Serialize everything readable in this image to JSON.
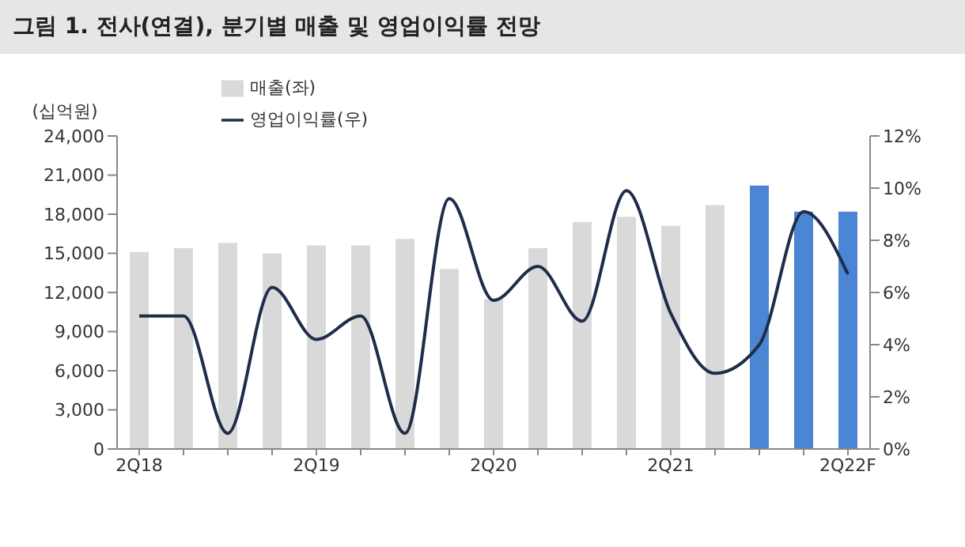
{
  "chart_data": {
    "type": "bar",
    "title": "그림 1. 전사(연결), 분기별 매출 및 영업이익률 전망",
    "ylabel": "(십억원)",
    "categories": [
      "2Q18",
      null,
      null,
      null,
      "2Q19",
      null,
      null,
      null,
      "2Q20",
      null,
      null,
      null,
      "2Q21",
      null,
      null,
      null,
      "2Q22F"
    ],
    "series": [
      {
        "name": "매출(좌)",
        "colors": [
          "#d9d9d9",
          "#d9d9d9",
          "#d9d9d9",
          "#d9d9d9",
          "#d9d9d9",
          "#d9d9d9",
          "#d9d9d9",
          "#d9d9d9",
          "#d9d9d9",
          "#d9d9d9",
          "#d9d9d9",
          "#d9d9d9",
          "#d9d9d9",
          "#d9d9d9",
          "#4a86d4",
          "#4a86d4",
          "#4a86d4"
        ],
        "values": [
          15100,
          15400,
          15800,
          15000,
          15600,
          15600,
          16100,
          13800,
          11500,
          15400,
          17400,
          17800,
          17100,
          18700,
          20200,
          18200,
          18200
        ]
      },
      {
        "name": "영업이익률(우)",
        "type": "line",
        "axis": "y2",
        "color": "#1f2d4a",
        "values": [
          5.1,
          5.1,
          0.6,
          6.2,
          4.2,
          5.1,
          0.6,
          9.6,
          5.7,
          7.0,
          4.9,
          9.9,
          5.2,
          2.9,
          4.0,
          9.1,
          6.7
        ]
      }
    ],
    "ylim": [
      0,
      24000
    ],
    "yticks": [
      {
        "value": 0,
        "label": "0"
      },
      {
        "value": 3000,
        "label": "3,000"
      },
      {
        "value": 6000,
        "label": "6,000"
      },
      {
        "value": 9000,
        "label": "9,000"
      },
      {
        "value": 12000,
        "label": "12,000"
      },
      {
        "value": 15000,
        "label": "15,000"
      },
      {
        "value": 18000,
        "label": "18,000"
      },
      {
        "value": 21000,
        "label": "21,000"
      },
      {
        "value": 24000,
        "label": "24,000"
      }
    ],
    "y2lim": [
      0,
      12
    ],
    "y2ticks": [
      {
        "value": 0,
        "label": "0%"
      },
      {
        "value": 2,
        "label": "2%"
      },
      {
        "value": 4,
        "label": "4%"
      },
      {
        "value": 6,
        "label": "6%"
      },
      {
        "value": 8,
        "label": "8%"
      },
      {
        "value": 10,
        "label": "10%"
      },
      {
        "value": 12,
        "label": "12%"
      }
    ],
    "legend": "top left",
    "grid": false,
    "marker": "none",
    "line_style": "solid"
  }
}
